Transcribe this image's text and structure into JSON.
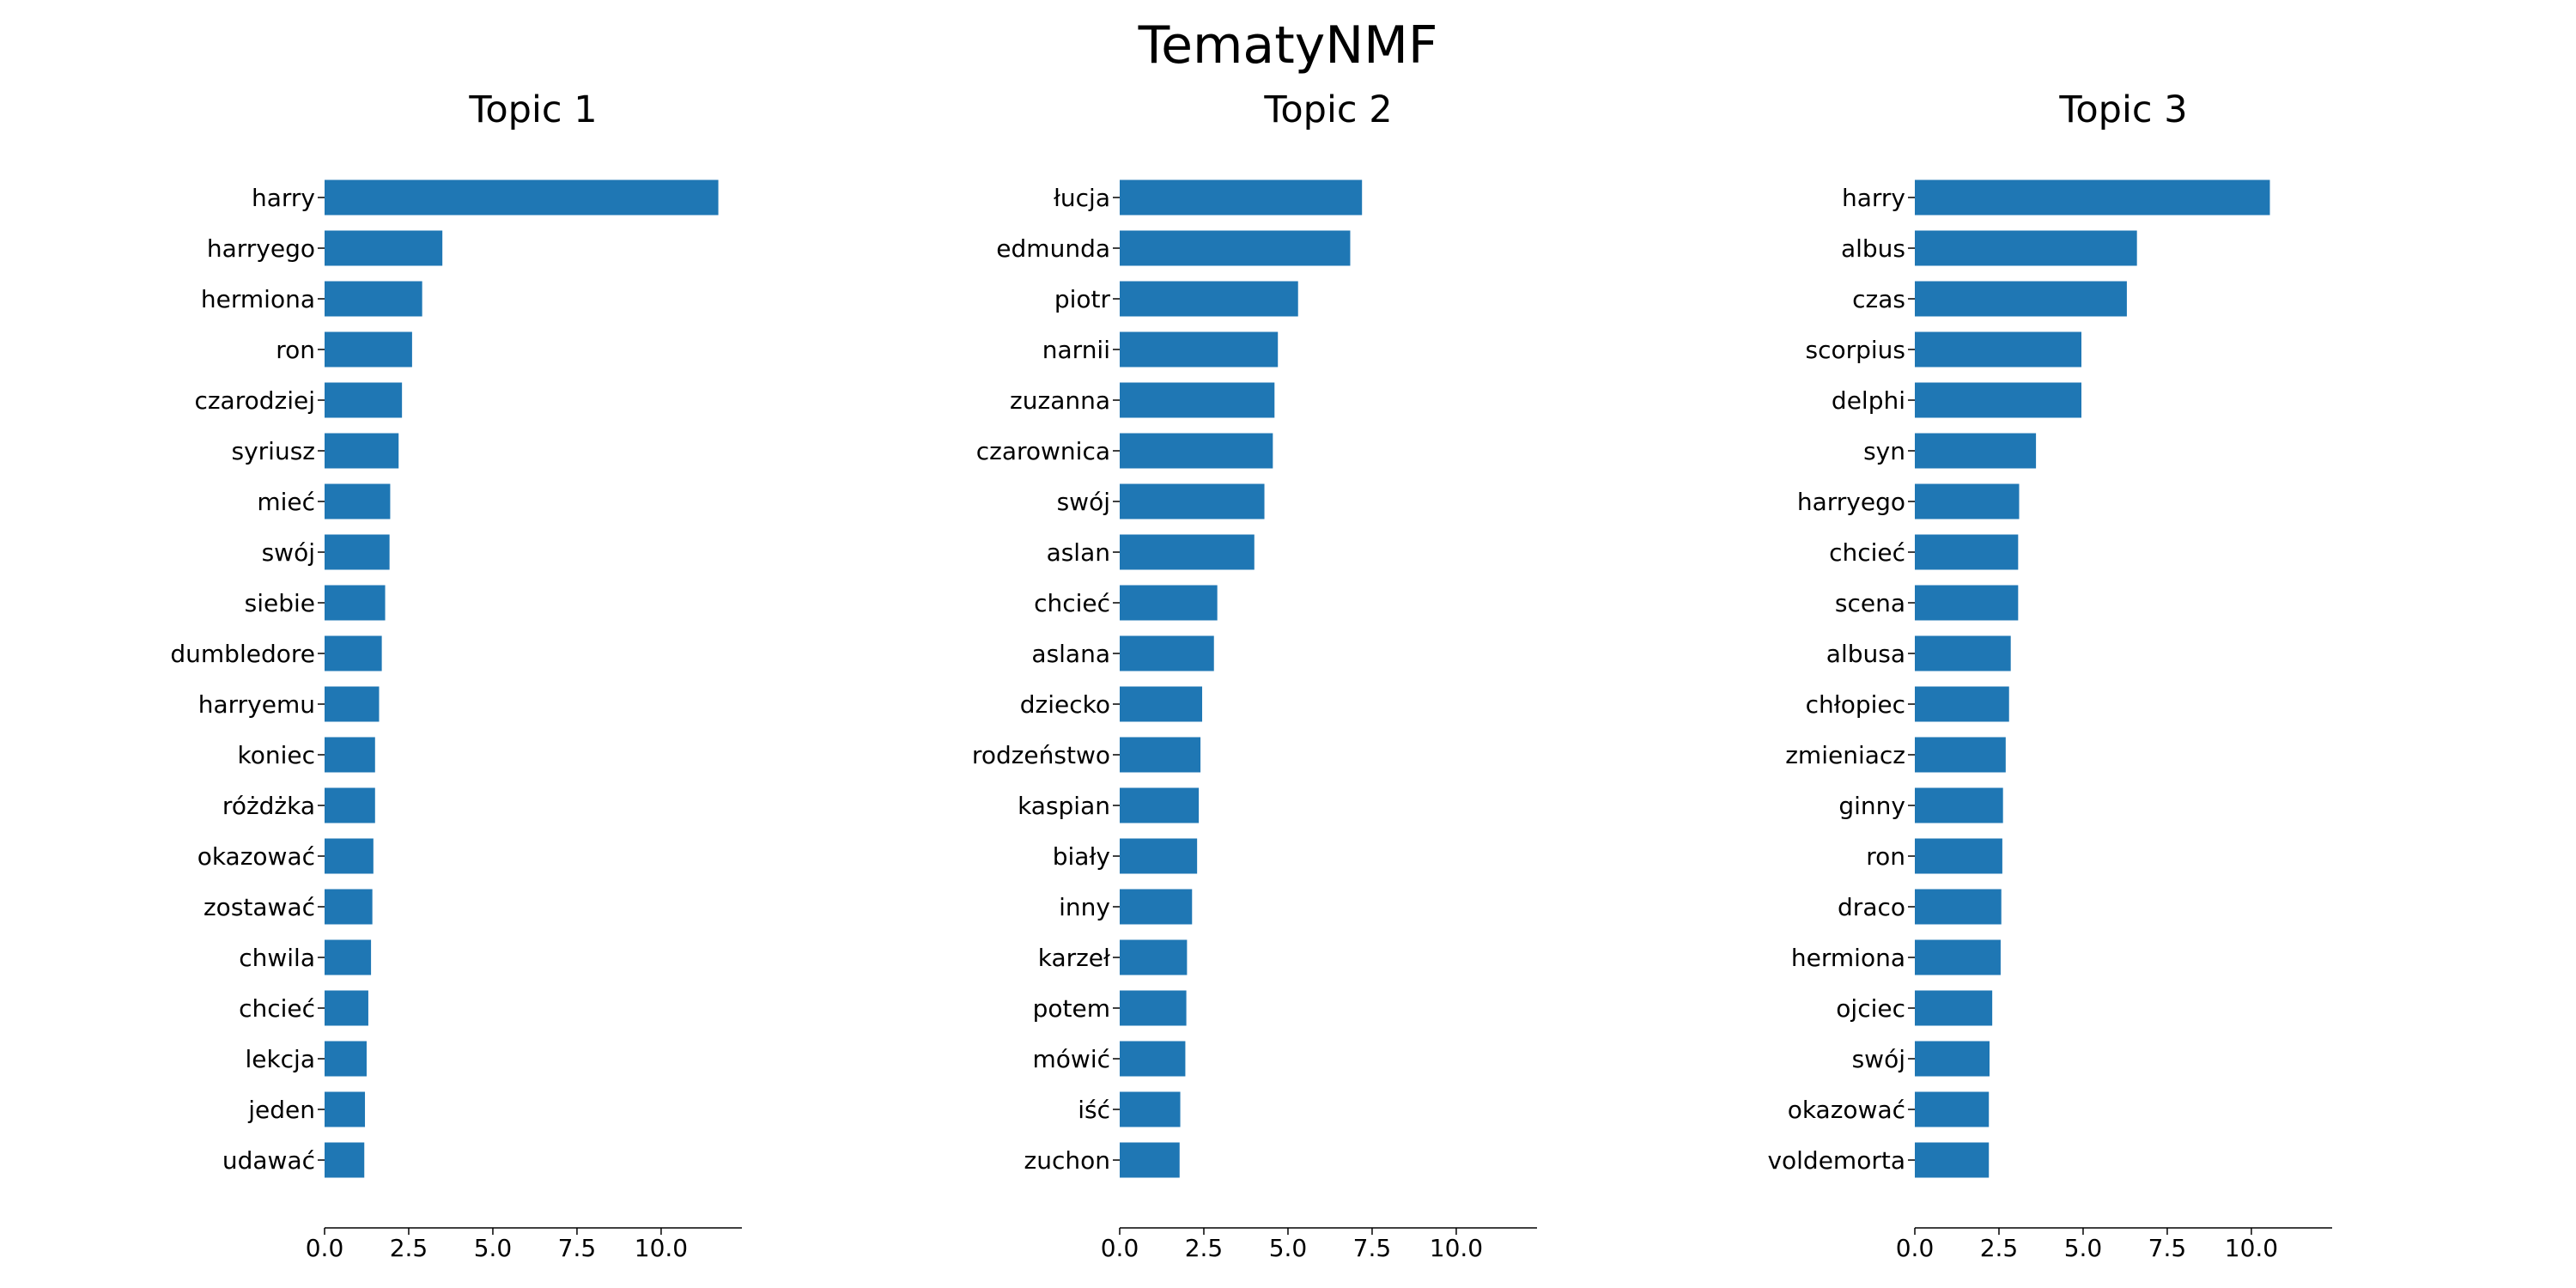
{
  "figure_title": "TematyNMF",
  "bar_color": "#1f77b4",
  "chart_data": [
    {
      "type": "bar",
      "orientation": "horizontal",
      "title": "Topic 1",
      "categories": [
        "harry",
        "harryego",
        "hermiona",
        "ron",
        "czarodziej",
        "syriusz",
        "mieć",
        "swój",
        "siebie",
        "dumbledore",
        "harryemu",
        "koniec",
        "różdżka",
        "okazować",
        "zostawać",
        "chwila",
        "chcieć",
        "lekcja",
        "jeden",
        "udawać"
      ],
      "values": [
        11.7,
        3.5,
        2.9,
        2.6,
        2.3,
        2.2,
        1.95,
        1.93,
        1.8,
        1.7,
        1.62,
        1.5,
        1.5,
        1.45,
        1.42,
        1.38,
        1.3,
        1.25,
        1.2,
        1.18
      ],
      "xlim": [
        0,
        12.4
      ],
      "xticks": [
        "0.0",
        "2.5",
        "5.0",
        "7.5",
        "10.0"
      ]
    },
    {
      "type": "bar",
      "orientation": "horizontal",
      "title": "Topic 2",
      "categories": [
        "łucja",
        "edmunda",
        "piotr",
        "narnii",
        "zuzanna",
        "czarownica",
        "swój",
        "aslan",
        "chcieć",
        "aslana",
        "dziecko",
        "rodzeństwo",
        "kaspian",
        "biały",
        "inny",
        "karzeł",
        "potem",
        "mówić",
        "iść",
        "zuchon"
      ],
      "values": [
        7.2,
        6.85,
        5.3,
        4.7,
        4.6,
        4.55,
        4.3,
        4.0,
        2.9,
        2.8,
        2.45,
        2.4,
        2.35,
        2.3,
        2.15,
        2.0,
        1.98,
        1.95,
        1.8,
        1.78
      ],
      "xlim": [
        0,
        12.4
      ],
      "xticks": [
        "0.0",
        "2.5",
        "5.0",
        "7.5",
        "10.0"
      ]
    },
    {
      "type": "bar",
      "orientation": "horizontal",
      "title": "Topic 3",
      "categories": [
        "harry",
        "albus",
        "czas",
        "scorpius",
        "delphi",
        "syn",
        "harryego",
        "chcieć",
        "scena",
        "albusa",
        "chłopiec",
        "zmieniacz",
        "ginny",
        "ron",
        "draco",
        "hermiona",
        "ojciec",
        "swój",
        "okazować",
        "voldemorta"
      ],
      "values": [
        10.55,
        6.6,
        6.3,
        4.95,
        4.95,
        3.6,
        3.1,
        3.07,
        3.07,
        2.85,
        2.8,
        2.7,
        2.62,
        2.6,
        2.57,
        2.55,
        2.3,
        2.22,
        2.2,
        2.2
      ],
      "xlim": [
        0,
        12.4
      ],
      "xticks": [
        "0.0",
        "2.5",
        "5.0",
        "7.5",
        "10.0"
      ]
    }
  ]
}
